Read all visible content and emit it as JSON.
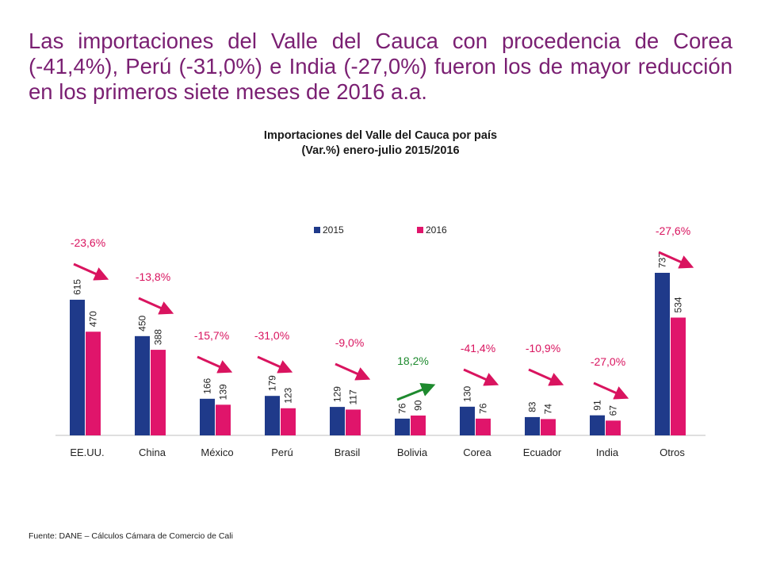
{
  "headline": "Las importaciones del Valle del Cauca con procedencia de Corea (-41,4%), Perú (-31,0%) e India (-27,0%) fueron los de mayor reducción en los primeros siete meses de 2016 a.a.",
  "source": "Fuente: DANE – Cálculos Cámara de Comercio de Cali",
  "colors": {
    "headline": "#7a1f72",
    "s2015": "#1f3a8a",
    "s2016": "#e0156b",
    "arrow_down": "#d9145f",
    "arrow_up": "#1e8a2e"
  },
  "chart_data": {
    "type": "bar",
    "title_line1": "Importaciones del Valle del Cauca por país",
    "title_line2": "(Var.%) enero-julio 2015/2016",
    "categories": [
      "EE.UU.",
      "China",
      "México",
      "Perú",
      "Brasil",
      "Bolivia",
      "Corea",
      "Ecuador",
      "India",
      "Otros"
    ],
    "series": [
      {
        "name": "2015",
        "values": [
          615,
          450,
          166,
          179,
          129,
          76,
          130,
          83,
          91,
          737
        ]
      },
      {
        "name": "2016",
        "values": [
          470,
          388,
          139,
          123,
          117,
          90,
          76,
          74,
          67,
          534
        ]
      }
    ],
    "variations": [
      "-23,6%",
      "-13,8%",
      "-15,7%",
      "-31,0%",
      "-9,0%",
      "18,2%",
      "-41,4%",
      "-10,9%",
      "-27,0%",
      "-27,6%"
    ],
    "variation_direction": [
      "down",
      "down",
      "down",
      "down",
      "down",
      "up",
      "down",
      "down",
      "down",
      "down"
    ],
    "ylim": [
      0,
      750
    ],
    "legend_position": "top-center",
    "grid": false
  }
}
